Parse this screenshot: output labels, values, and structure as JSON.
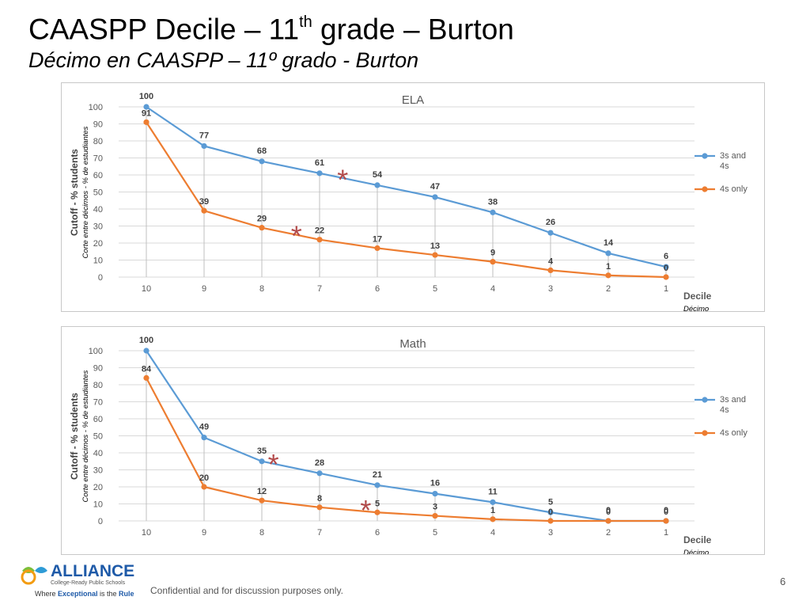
{
  "slide": {
    "title_main": "CAASPP Decile – 11",
    "title_sup": "th",
    "title_rest": " grade – Burton",
    "subtitle": "Décimo en CAASPP – 11º grado - Burton",
    "footer_note": "Confidential and for discussion purposes only.",
    "page_number": "6",
    "logo": {
      "name": "ALLIANCE",
      "tagline": "College-Ready Public Schools",
      "slogan_1": "Where ",
      "slogan_2": "Exceptional",
      "slogan_3": " is the ",
      "slogan_4": "Rule"
    }
  },
  "colors": {
    "blue": "#5b9bd5",
    "orange": "#ed7d31",
    "asterisk": "#b34a4a",
    "grid": "#d9d9d9",
    "axis_text": "#595959"
  },
  "chart_data": [
    {
      "type": "line",
      "title": "ELA",
      "ylabel": "Cutoff - % students",
      "ylabel_es": "Corte entre décimos - % de estudiantes",
      "xlabel": "Decile",
      "xlabel_es": "Décimo",
      "categories": [
        "10",
        "9",
        "8",
        "7",
        "6",
        "5",
        "4",
        "3",
        "2",
        "1"
      ],
      "y_ticks": [
        0,
        10,
        20,
        30,
        40,
        50,
        60,
        70,
        80,
        90,
        100
      ],
      "ylim": [
        0,
        100
      ],
      "legend_position": "right",
      "series": [
        {
          "name": "3s and 4s",
          "color": "#5b9bd5",
          "values": [
            100,
            77,
            68,
            61,
            54,
            47,
            38,
            26,
            14,
            6
          ]
        },
        {
          "name": "4s only",
          "color": "#ed7d31",
          "values": [
            91,
            39,
            29,
            22,
            17,
            13,
            9,
            4,
            1,
            0
          ]
        }
      ],
      "asterisks": [
        {
          "x": 3.4,
          "y": 58
        },
        {
          "x": 2.6,
          "y": 25
        }
      ]
    },
    {
      "type": "line",
      "title": "Math",
      "ylabel": "Cutoff - % students",
      "ylabel_es": "Corte entre décimos - % de estudiantes",
      "xlabel": "Decile",
      "xlabel_es": "Décimo",
      "categories": [
        "10",
        "9",
        "8",
        "7",
        "6",
        "5",
        "4",
        "3",
        "2",
        "1"
      ],
      "y_ticks": [
        0,
        10,
        20,
        30,
        40,
        50,
        60,
        70,
        80,
        90,
        100
      ],
      "ylim": [
        0,
        100
      ],
      "legend_position": "right",
      "series": [
        {
          "name": "3s and 4s",
          "color": "#5b9bd5",
          "values": [
            100,
            49,
            35,
            28,
            21,
            16,
            11,
            5,
            0,
            0
          ]
        },
        {
          "name": "4s only",
          "color": "#ed7d31",
          "values": [
            84,
            20,
            12,
            8,
            5,
            3,
            1,
            0,
            0,
            0
          ]
        }
      ],
      "asterisks": [
        {
          "x": 2.2,
          "y": 34
        },
        {
          "x": 3.8,
          "y": 7
        }
      ]
    }
  ]
}
